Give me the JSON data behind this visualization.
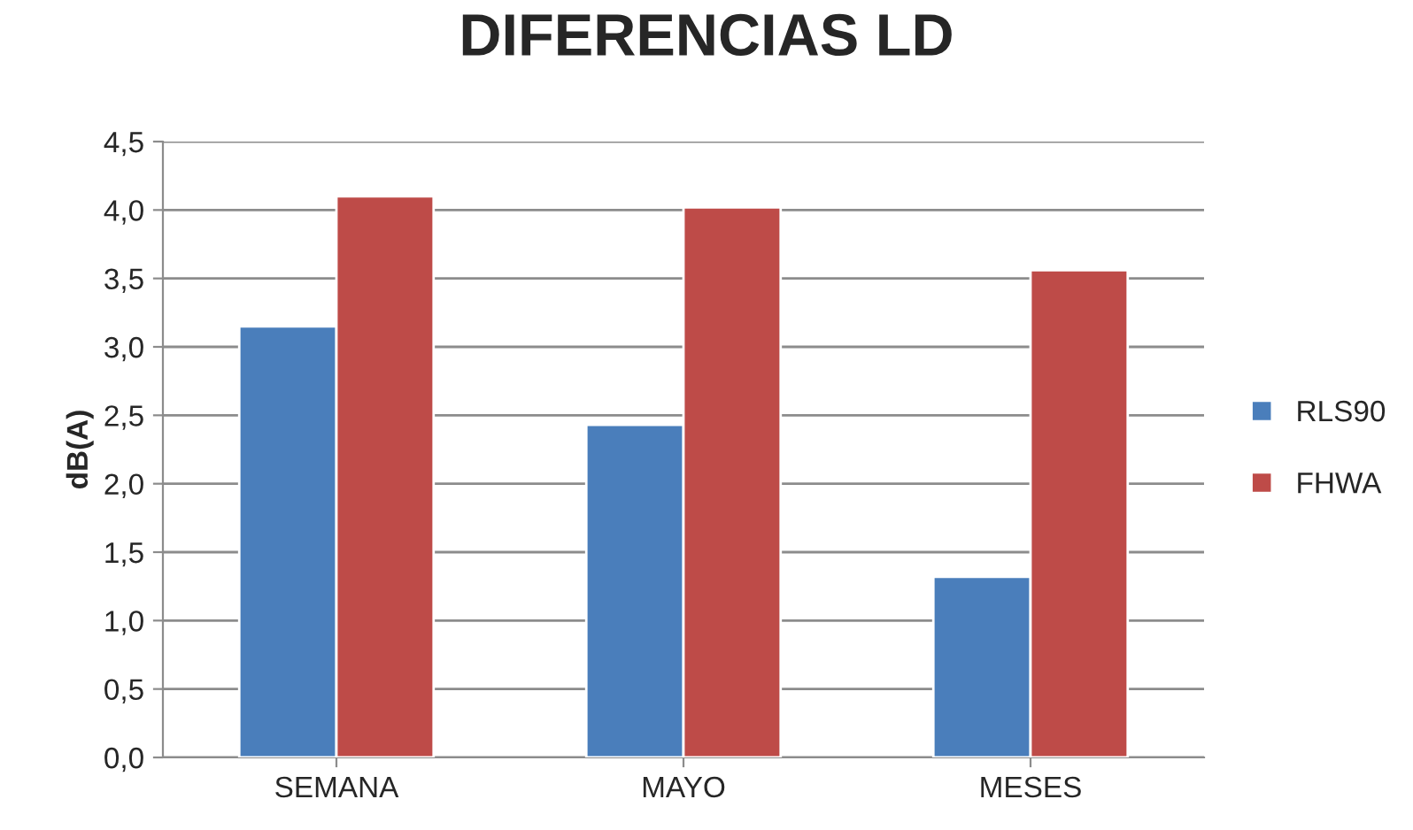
{
  "chart_data": {
    "type": "bar",
    "title": "DIFERENCIAS LD",
    "ylabel": "dB(A)",
    "categories": [
      "SEMANA",
      "MAYO",
      "MESES"
    ],
    "series": [
      {
        "name": "RLS90",
        "color": "#4a7ebb",
        "values": [
          3.15,
          2.43,
          1.32
        ]
      },
      {
        "name": "FHWA",
        "color": "#be4b48",
        "values": [
          4.1,
          4.02,
          3.56
        ]
      }
    ],
    "ylim": [
      0,
      4.5
    ],
    "yticks": [
      {
        "value": 0,
        "label": "0,0"
      },
      {
        "value": 0.5,
        "label": "0,5"
      },
      {
        "value": 1,
        "label": "1,0"
      },
      {
        "value": 1.5,
        "label": "1,5"
      },
      {
        "value": 2,
        "label": "2,0"
      },
      {
        "value": 2.5,
        "label": "2,5"
      },
      {
        "value": 3,
        "label": "3,0"
      },
      {
        "value": 3.5,
        "label": "3,5"
      },
      {
        "value": 4,
        "label": "4,0"
      },
      {
        "value": 4.5,
        "label": "4,5"
      }
    ],
    "grid": "y",
    "legend": "right"
  }
}
